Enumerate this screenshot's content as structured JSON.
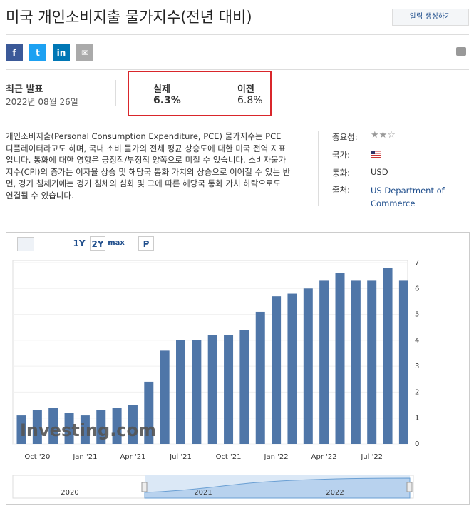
{
  "header": {
    "title": "미국 개인소비지출 물가지수(전년 대비)",
    "alert_button": "알림 생성하기"
  },
  "share": {
    "facebook": "f",
    "twitter": "t",
    "linkedin": "in"
  },
  "release": {
    "latest_label": "최근 발표",
    "latest_date": "2022년 08월 26일",
    "actual_label": "실제",
    "actual_value": "6.3%",
    "previous_label": "이전",
    "previous_value": "6.8%"
  },
  "description": "개인소비지출(Personal Consumption Expenditure, PCE) 물가지수는 PCE 디플레이터라고도 하며, 국내 소비 물가의 전체 평균 상승도에 대한 미국 전역 지표입니다. 통화에 대한 영향은 긍정적/부정적 양쪽으로 미칠 수 있습니다. 소비자물가지수(CPI)의 증가는 이자율 상승 및 해당국 통화 가치의 상승으로 이어질 수 있는 반면, 경기 침체기에는 경기 침체의 심화 및 그에 따른 해당국 통화 가치 하락으로도 연결될 수 있습니다.",
  "details": {
    "importance_label": "중요성:",
    "country_label": "국가:",
    "currency_label": "통화:",
    "currency": "USD",
    "source_label": "출처:",
    "source": "US Department of Commerce"
  },
  "toolbar": {
    "range_1y": "1Y",
    "range_2y": "2Y",
    "range_max": "max",
    "p": "P"
  },
  "chart": {
    "type": "bar",
    "color": "#4f76a8",
    "categories": [
      null,
      "Oct '20",
      null,
      null,
      "Jan '21",
      null,
      null,
      "Apr '21",
      null,
      null,
      "Jul '21",
      null,
      null,
      "Oct '21",
      null,
      null,
      "Jan '22",
      null,
      null,
      "Apr '22",
      null,
      null,
      "Jul '22",
      null,
      null
    ],
    "values": [
      1.1,
      1.3,
      1.4,
      1.2,
      1.1,
      1.3,
      1.4,
      1.5,
      2.4,
      3.6,
      4.0,
      4.0,
      4.2,
      4.2,
      4.4,
      5.1,
      5.7,
      5.8,
      6.0,
      6.3,
      6.6,
      6.3,
      6.3,
      6.8,
      6.3
    ],
    "ylim": [
      0,
      7
    ],
    "yticks": [
      0,
      1,
      2,
      3,
      4,
      5,
      6,
      7
    ],
    "watermark": "Investing.com",
    "navigator_years": [
      "2020",
      "2021",
      "2022"
    ]
  }
}
